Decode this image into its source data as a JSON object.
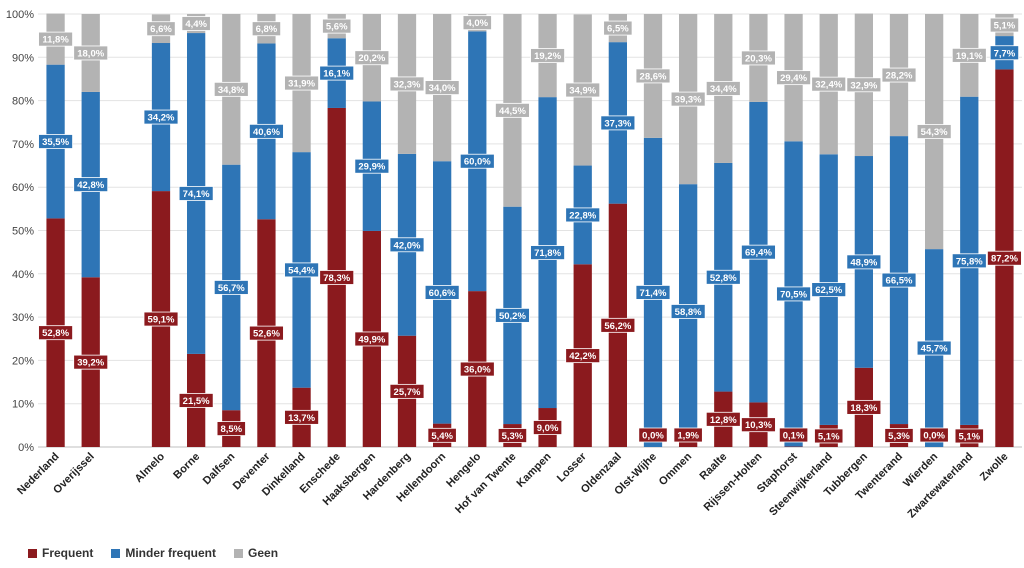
{
  "chart_data": {
    "type": "bar",
    "stacked": true,
    "percent": true,
    "categories": [
      "Nederland",
      "Overijssel",
      "Almelo",
      "Borne",
      "Dalfsen",
      "Deventer",
      "Dinkelland",
      "Enschede",
      "Haaksbergen",
      "Hardenberg",
      "Hellendoorn",
      "Hengelo",
      "Hof van Twente",
      "Kampen",
      "Losser",
      "Oldenzaal",
      "Olst-Wijhe",
      "Ommen",
      "Raalte",
      "Rijssen-Holten",
      "Staphorst",
      "Steenwijkerland",
      "Tubbergen",
      "Twenterand",
      "Wierden",
      "Zwartewaterland",
      "Zwolle"
    ],
    "series": [
      {
        "name": "Frequent",
        "color": "#8b1a1e",
        "values": [
          52.8,
          39.2,
          59.1,
          21.5,
          8.5,
          52.6,
          13.7,
          78.3,
          49.9,
          25.7,
          5.4,
          36.0,
          5.3,
          9.0,
          42.2,
          56.2,
          0.0,
          1.9,
          12.8,
          10.3,
          0.1,
          5.1,
          18.3,
          5.3,
          0.0,
          5.1,
          87.2
        ],
        "labels": [
          "52,8%",
          "39,2%",
          "59,1%",
          "21,5%",
          "8,5%",
          "52,6%",
          "13,7%",
          "78,3%",
          "49,9%",
          "25,7%",
          "5,4%",
          "36,0%",
          "5,3%",
          "9,0%",
          "42,2%",
          "56,2%",
          "0,0%",
          "1,9%",
          "12,8%",
          "10,3%",
          "0,1%",
          "5,1%",
          "18,3%",
          "5,3%",
          "0,0%",
          "5,1%",
          "87,2%"
        ]
      },
      {
        "name": "Minder frequent",
        "color": "#2e75b6",
        "values": [
          35.5,
          42.8,
          34.2,
          74.1,
          56.7,
          40.6,
          54.4,
          16.1,
          29.9,
          42.0,
          60.6,
          60.0,
          50.2,
          71.8,
          22.8,
          37.3,
          71.4,
          58.8,
          52.8,
          69.4,
          70.5,
          62.5,
          48.9,
          66.5,
          45.7,
          75.8,
          7.7
        ],
        "labels": [
          "35,5%",
          "42,8%",
          "34,2%",
          "74,1%",
          "56,7%",
          "40,6%",
          "54,4%",
          "16,1%",
          "29,9%",
          "42,0%",
          "60,6%",
          "60,0%",
          "50,2%",
          "71,8%",
          "22,8%",
          "37,3%",
          "71,4%",
          "58,8%",
          "52,8%",
          "69,4%",
          "70,5%",
          "62,5%",
          "48,9%",
          "66,5%",
          "45,7%",
          "75,8%",
          "7,7%"
        ]
      },
      {
        "name": "Geen",
        "color": "#b3b3b3",
        "values": [
          11.8,
          18.0,
          6.6,
          4.4,
          34.8,
          6.8,
          31.9,
          5.6,
          20.2,
          32.3,
          34.0,
          4.0,
          44.5,
          19.2,
          34.9,
          6.5,
          28.6,
          39.3,
          34.4,
          20.3,
          29.4,
          32.4,
          32.9,
          28.2,
          54.3,
          19.1,
          5.1
        ],
        "labels": [
          "11,8%",
          "18,0%",
          "6,6%",
          "4,4%",
          "34,8%",
          "6,8%",
          "31,9%",
          "5,6%",
          "20,2%",
          "32,3%",
          "34,0%",
          "4,0%",
          "44,5%",
          "19,2%",
          "34,9%",
          "6,5%",
          "28,6%",
          "39,3%",
          "34,4%",
          "20,3%",
          "29,4%",
          "32,4%",
          "32,9%",
          "28,2%",
          "54,3%",
          "19,1%",
          "5,1%"
        ]
      }
    ],
    "yticks": [
      "0%",
      "10%",
      "20%",
      "30%",
      "40%",
      "50%",
      "60%",
      "70%",
      "80%",
      "90%",
      "100%"
    ],
    "ylim": [
      0,
      100
    ],
    "grid": true,
    "legend_position": "bottom-left",
    "title": "",
    "xlabel": "",
    "ylabel": ""
  }
}
